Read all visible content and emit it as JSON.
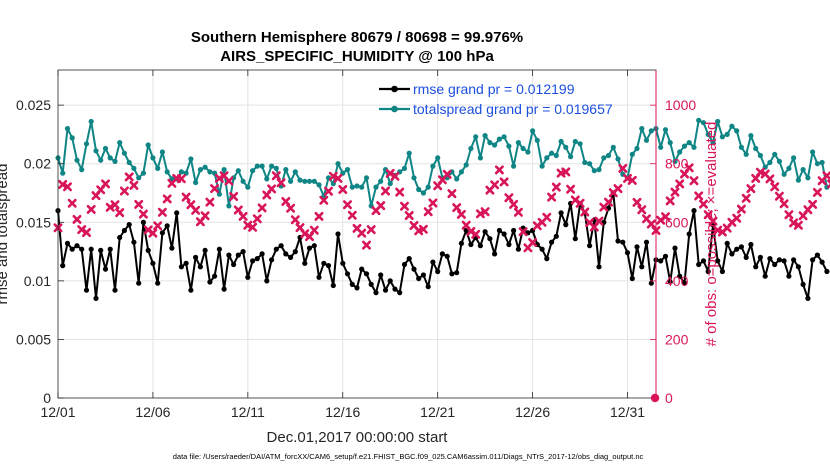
{
  "chart_data": {
    "type": "line",
    "title": "Southern Hemisphere 80679 / 80698 = 99.976%",
    "subtitle": "AIRS_SPECIFIC_HUMIDITY @ 100 hPa",
    "xlabel": "Dec.01,2017 00:00:00 start",
    "ylabel": "rmse and totalspread",
    "ylabel_right": "# of obs: o=possible; ×=evaluated",
    "footnote": "data file: /Users/raeder/DAI/ATM_forcXX/CAM6_setup/f.e21.FHIST_BGC.f09_025.CAM6assim.011/Diags_NTrS_2017-12/obs_diag_output.nc",
    "xlim": [
      0,
      31.5
    ],
    "ylim": [
      0,
      0.028
    ],
    "ylim_right": [
      0,
      1120
    ],
    "xticks": [
      {
        "value": 0,
        "label": "12/01"
      },
      {
        "value": 5,
        "label": "12/06"
      },
      {
        "value": 10,
        "label": "12/11"
      },
      {
        "value": 15,
        "label": "12/16"
      },
      {
        "value": 20,
        "label": "12/21"
      },
      {
        "value": 25,
        "label": "12/26"
      },
      {
        "value": 30,
        "label": "12/31"
      }
    ],
    "yticks": [
      {
        "value": 0,
        "label": "0"
      },
      {
        "value": 0.005,
        "label": "0.005"
      },
      {
        "value": 0.01,
        "label": "0.01"
      },
      {
        "value": 0.015,
        "label": "0.015"
      },
      {
        "value": 0.02,
        "label": "0.02"
      },
      {
        "value": 0.025,
        "label": "0.025"
      }
    ],
    "yticks_right": [
      {
        "value": 0,
        "label": "0"
      },
      {
        "value": 200,
        "label": "200"
      },
      {
        "value": 400,
        "label": "400"
      },
      {
        "value": 600,
        "label": "600"
      },
      {
        "value": 800,
        "label": "800"
      },
      {
        "value": 1000,
        "label": "1000"
      }
    ],
    "grid": true,
    "legend_position": "top-right",
    "colors": {
      "rmse": "#000000",
      "totalspread": "#0f8585",
      "obs": "#d8155a",
      "legend_text": "#1c4fe0",
      "axis": "#262626"
    },
    "series": [
      {
        "name": "rmse grand pr = 0.012199",
        "key": "rmse",
        "marker": "dot",
        "axis": "left",
        "start": 0,
        "step": 0.25,
        "values": [
          0.016,
          0.0113,
          0.0132,
          0.0127,
          0.013,
          0.0127,
          0.0092,
          0.0127,
          0.0085,
          0.0126,
          0.011,
          0.0127,
          0.0092,
          0.0137,
          0.0143,
          0.0148,
          0.0133,
          0.0098,
          0.015,
          0.0126,
          0.0115,
          0.0098,
          0.0141,
          0.0147,
          0.0128,
          0.0158,
          0.0112,
          0.0115,
          0.0092,
          0.012,
          0.0112,
          0.0126,
          0.0099,
          0.0104,
          0.0127,
          0.0093,
          0.0122,
          0.0114,
          0.0122,
          0.0125,
          0.0103,
          0.0117,
          0.0119,
          0.0123,
          0.01,
          0.0118,
          0.0127,
          0.013,
          0.0123,
          0.012,
          0.0125,
          0.0137,
          0.0115,
          0.0128,
          0.013,
          0.0103,
          0.0115,
          0.0113,
          0.0096,
          0.014,
          0.0115,
          0.0106,
          0.0097,
          0.0094,
          0.011,
          0.0106,
          0.0097,
          0.009,
          0.0105,
          0.0092,
          0.01,
          0.0093,
          0.009,
          0.0114,
          0.0119,
          0.011,
          0.0102,
          0.0105,
          0.0095,
          0.0116,
          0.0108,
          0.0123,
          0.0121,
          0.0106,
          0.0107,
          0.0132,
          0.0143,
          0.0131,
          0.0137,
          0.013,
          0.0142,
          0.0136,
          0.0123,
          0.0143,
          0.014,
          0.0131,
          0.0143,
          0.0127,
          0.0145,
          0.0141,
          0.0143,
          0.0131,
          0.0127,
          0.0119,
          0.0133,
          0.0138,
          0.0158,
          0.0148,
          0.0166,
          0.0136,
          0.0166,
          0.0158,
          0.013,
          0.0152,
          0.0112,
          0.015,
          0.0162,
          0.0175,
          0.0134,
          0.0133,
          0.0124,
          0.0102,
          0.0129,
          0.0112,
          0.0133,
          0.0098,
          0.0118,
          0.0117,
          0.0121,
          0.0099,
          0.0128,
          0.0104,
          0.0098,
          0.014,
          0.016,
          0.0114,
          0.0117,
          0.0108,
          0.0148,
          0.0117,
          0.0108,
          0.0132,
          0.0123,
          0.0127,
          0.0129,
          0.012,
          0.0131,
          0.0112,
          0.012,
          0.0104,
          0.0119,
          0.0114,
          0.0118,
          0.0117,
          0.0104,
          0.0118,
          0.0112,
          0.0097,
          0.0085,
          0.0118,
          0.0122,
          0.0116,
          0.0108
        ]
      },
      {
        "name": "totalspread grand pr = 0.019657",
        "key": "totalspread",
        "marker": "dot",
        "axis": "left",
        "start": 0,
        "step": 0.25,
        "values": [
          0.0205,
          0.0192,
          0.023,
          0.0222,
          0.0203,
          0.0195,
          0.0217,
          0.0236,
          0.0211,
          0.0203,
          0.0213,
          0.0205,
          0.0202,
          0.0218,
          0.0209,
          0.0201,
          0.0196,
          0.0188,
          0.0192,
          0.0216,
          0.0205,
          0.0196,
          0.021,
          0.0193,
          0.0187,
          0.0187,
          0.0193,
          0.0192,
          0.0204,
          0.0184,
          0.0195,
          0.0197,
          0.0193,
          0.0192,
          0.0174,
          0.0195,
          0.0164,
          0.0188,
          0.0194,
          0.0185,
          0.018,
          0.0194,
          0.0198,
          0.0198,
          0.0187,
          0.0198,
          0.0196,
          0.0181,
          0.0195,
          0.0185,
          0.0193,
          0.0186,
          0.0185,
          0.0185,
          0.0185,
          0.0182,
          0.0172,
          0.0188,
          0.0183,
          0.02,
          0.0192,
          0.0195,
          0.018,
          0.0181,
          0.018,
          0.0188,
          0.0164,
          0.018,
          0.0185,
          0.0195,
          0.0183,
          0.019,
          0.0193,
          0.0196,
          0.0209,
          0.0188,
          0.0178,
          0.0175,
          0.018,
          0.0198,
          0.0205,
          0.0188,
          0.0188,
          0.0193,
          0.0187,
          0.0193,
          0.0199,
          0.0213,
          0.0223,
          0.0205,
          0.0224,
          0.0218,
          0.0216,
          0.0221,
          0.0223,
          0.0215,
          0.0198,
          0.0218,
          0.0213,
          0.021,
          0.0228,
          0.022,
          0.0198,
          0.0205,
          0.0209,
          0.0207,
          0.0219,
          0.0214,
          0.0206,
          0.0219,
          0.0217,
          0.0201,
          0.02,
          0.0194,
          0.0195,
          0.0205,
          0.0207,
          0.0214,
          0.0204,
          0.0191,
          0.0188,
          0.0208,
          0.0213,
          0.023,
          0.022,
          0.0228,
          0.023,
          0.0214,
          0.0229,
          0.0218,
          0.0202,
          0.021,
          0.0215,
          0.0218,
          0.0214,
          0.0237,
          0.0235,
          0.0225,
          0.0218,
          0.0236,
          0.0223,
          0.0225,
          0.0232,
          0.0228,
          0.0214,
          0.0208,
          0.0224,
          0.0213,
          0.0207,
          0.0197,
          0.0201,
          0.0208,
          0.0202,
          0.0191,
          0.0196,
          0.0205,
          0.0186,
          0.0195,
          0.0188,
          0.021,
          0.02,
          0.0201,
          0.018
        ]
      },
      {
        "name": "# of obs evaluated",
        "key": "obs",
        "marker": "x",
        "axis": "right",
        "start": 0,
        "step": 0.25,
        "values": [
          581,
          729,
          721,
          665,
          610,
          575,
          565,
          644,
          691,
          711,
          731,
          651,
          660,
          633,
          707,
          755,
          726,
          661,
          628,
          574,
          563,
          588,
          634,
          680,
          733,
          750,
          749,
          686,
          660,
          641,
          602,
          622,
          669,
          715,
          750,
          759,
          741,
          688,
          642,
          620,
          590,
          583,
          612,
          649,
          693,
          714,
          759,
          735,
          671,
          648,
          609,
          582,
          561,
          551,
          573,
          620,
          675,
          706,
          757,
          750,
          712,
          660,
          624,
          579,
          563,
          522,
          575,
          640,
          657,
          707,
          767,
          757,
          703,
          655,
          623,
          589,
          571,
          576,
          636,
          666,
          725,
          745,
          764,
          698,
          650,
          627,
          590,
          569,
          559,
          629,
          636,
          710,
          728,
          779,
          738,
          684,
          661,
          634,
          568,
          513,
          531,
          588,
          600,
          617,
          686,
          720,
          768,
          772,
          713,
          676,
          665,
          635,
          599,
          584,
          604,
          652,
          669,
          701,
          715,
          784,
          750,
          743,
          668,
          643,
          612,
          594,
          572,
          607,
          619,
          673,
          703,
          731,
          765,
          786,
          742,
          690,
          662,
          626,
          604,
          573,
          567,
          580,
          600,
          614,
          645,
          682,
          715,
          750,
          771,
          765,
          748,
          721,
          689,
          663,
          626,
          598,
          590,
          622,
          643,
          661,
          702,
          742,
          759,
          731,
          690
        ]
      }
    ],
    "right_axis_point": {
      "x": 31.45,
      "value": 0
    }
  }
}
